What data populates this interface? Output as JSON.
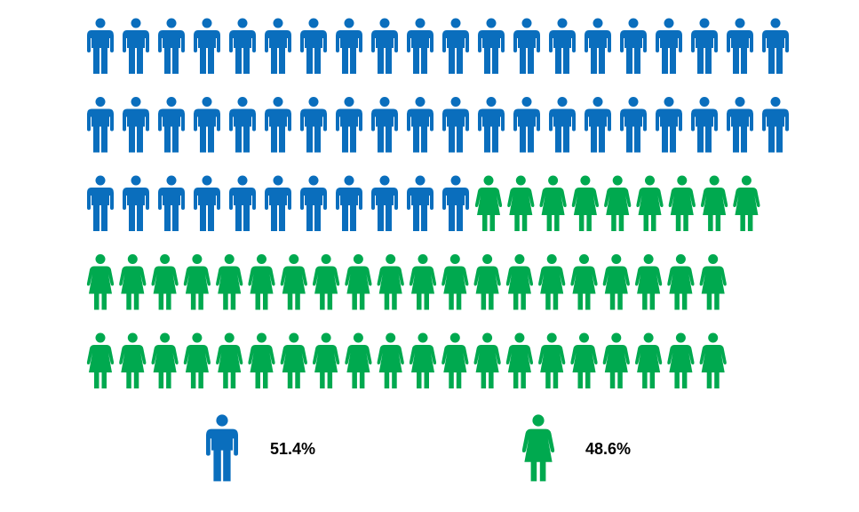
{
  "chart_data": {
    "type": "pictograph",
    "series": [
      {
        "icon": "man",
        "color": "#0a6ebd",
        "values": [
          51.4
        ],
        "value_labels": [
          "51.4%"
        ]
      },
      {
        "icon": "woman",
        "color": "#00a94f",
        "values": [
          48.6
        ],
        "value_labels": [
          "48.6%"
        ]
      }
    ]
  }
}
